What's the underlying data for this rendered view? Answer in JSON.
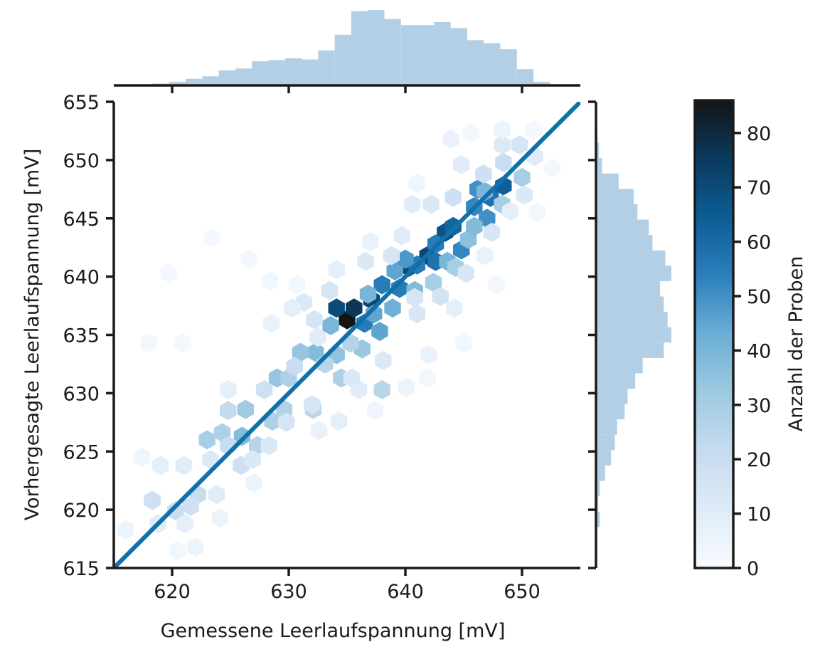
{
  "chart_data": {
    "type": "hexbin-jointplot",
    "xlabel": "Gemessene Leerlaufspannung [mV]",
    "ylabel": "Vorhergesagte Leerlaufspannung [mV]",
    "colorbar_label": "Anzahl der Proben",
    "xlim": [
      615,
      655
    ],
    "ylim": [
      615,
      655
    ],
    "x_ticks": [
      "620",
      "630",
      "640",
      "650"
    ],
    "y_ticks": [
      "615",
      "620",
      "625",
      "630",
      "635",
      "640",
      "645",
      "650",
      "655"
    ],
    "colorbar_ticks": [
      "0",
      "10",
      "20",
      "30",
      "40",
      "50",
      "60",
      "70",
      "80"
    ],
    "colorbar_range": [
      0,
      86
    ],
    "colormap": "Blues",
    "reference_line": {
      "from": [
        615,
        615
      ],
      "to": [
        655,
        655
      ],
      "color": "#1170aa"
    },
    "marginal_color": "#b3cfe5",
    "hexbin_data": [
      [
        635.0,
        636.3,
        86
      ],
      [
        635.6,
        637.3,
        76
      ],
      [
        634.1,
        637.3,
        70
      ],
      [
        637.1,
        638.0,
        72
      ],
      [
        640.3,
        640.8,
        70
      ],
      [
        641.9,
        641.8,
        72
      ],
      [
        643.4,
        643.8,
        68
      ],
      [
        644.1,
        644.3,
        62
      ],
      [
        647.3,
        646.8,
        58
      ],
      [
        648.4,
        647.8,
        64
      ],
      [
        636.5,
        636.0,
        55
      ],
      [
        638.0,
        639.3,
        55
      ],
      [
        639.5,
        639.0,
        55
      ],
      [
        641.0,
        641.0,
        55
      ],
      [
        642.6,
        641.3,
        58
      ],
      [
        642.6,
        642.8,
        55
      ],
      [
        644.8,
        642.3,
        52
      ],
      [
        645.9,
        646.0,
        52
      ],
      [
        646.2,
        647.5,
        50
      ],
      [
        647.0,
        645.0,
        50
      ],
      [
        639.1,
        640.5,
        45
      ],
      [
        640.0,
        641.5,
        48
      ],
      [
        637.3,
        636.8,
        45
      ],
      [
        638.9,
        637.3,
        42
      ],
      [
        637.8,
        635.3,
        45
      ],
      [
        636.8,
        638.5,
        40
      ],
      [
        633.6,
        635.8,
        40
      ],
      [
        632.3,
        633.5,
        38
      ],
      [
        631.0,
        633.5,
        34
      ],
      [
        636.3,
        633.8,
        33
      ],
      [
        634.1,
        633.3,
        35
      ],
      [
        640.8,
        638.8,
        38
      ],
      [
        643.6,
        641.3,
        40
      ],
      [
        645.4,
        643.2,
        36
      ],
      [
        645.9,
        644.3,
        38
      ],
      [
        646.8,
        647.3,
        40
      ],
      [
        650.0,
        648.5,
        30
      ],
      [
        629.0,
        631.3,
        34
      ],
      [
        626.3,
        628.6,
        32
      ],
      [
        626.0,
        626.3,
        38
      ],
      [
        628.6,
        627.6,
        28
      ],
      [
        642.4,
        639.5,
        30
      ],
      [
        644.3,
        640.8,
        30
      ],
      [
        648.3,
        646.2,
        30
      ],
      [
        623.0,
        626.0,
        30
      ],
      [
        624.3,
        626.6,
        28
      ],
      [
        629.6,
        628.6,
        27
      ],
      [
        634.5,
        631.3,
        28
      ],
      [
        633.1,
        632.5,
        25
      ],
      [
        630.0,
        631.3,
        28
      ],
      [
        635.3,
        634.3,
        26
      ],
      [
        630.5,
        632.3,
        20
      ],
      [
        627.3,
        625.5,
        26
      ],
      [
        638.0,
        630.3,
        25
      ],
      [
        632.1,
        628.6,
        25
      ],
      [
        622.2,
        621.3,
        20
      ],
      [
        621.6,
        620.3,
        18
      ],
      [
        620.3,
        619.9,
        20
      ],
      [
        618.3,
        620.8,
        18
      ],
      [
        624.8,
        625.5,
        20
      ],
      [
        625.9,
        623.8,
        18
      ],
      [
        623.3,
        624.3,
        12
      ],
      [
        624.8,
        628.5,
        22
      ],
      [
        627.9,
        630.3,
        18
      ],
      [
        632.2,
        636.3,
        15
      ],
      [
        631.3,
        637.8,
        12
      ],
      [
        632.0,
        629.0,
        15
      ],
      [
        633.5,
        638.8,
        14
      ],
      [
        636.6,
        641.3,
        12
      ],
      [
        638.8,
        641.8,
        14
      ],
      [
        640.8,
        638.2,
        15
      ],
      [
        641.0,
        636.8,
        14
      ],
      [
        643.0,
        638.3,
        16
      ],
      [
        645.2,
        640.3,
        14
      ],
      [
        647.4,
        643.8,
        14
      ],
      [
        646.7,
        648.8,
        18
      ],
      [
        649.8,
        651.3,
        15
      ],
      [
        648.4,
        649.8,
        20
      ],
      [
        648.3,
        651.3,
        12
      ],
      [
        644.8,
        649.6,
        10
      ],
      [
        642.2,
        646.2,
        12
      ],
      [
        640.6,
        646.2,
        10
      ],
      [
        639.7,
        643.5,
        10
      ],
      [
        644.1,
        646.8,
        18
      ],
      [
        650.2,
        647.0,
        12
      ],
      [
        651.1,
        650.3,
        10
      ],
      [
        636.0,
        630.3,
        10
      ],
      [
        638.1,
        632.8,
        12
      ],
      [
        635.4,
        631.3,
        12
      ],
      [
        629.8,
        627.5,
        15
      ],
      [
        628.3,
        625.5,
        12
      ],
      [
        626.9,
        624.3,
        12
      ],
      [
        621.0,
        623.8,
        10
      ],
      [
        619.0,
        623.8,
        8
      ],
      [
        618.8,
        618.8,
        10
      ],
      [
        621.1,
        618.8,
        8
      ],
      [
        623.8,
        621.3,
        10
      ],
      [
        622.0,
        616.8,
        5
      ],
      [
        630.3,
        637.3,
        8
      ],
      [
        632.5,
        634.8,
        10
      ],
      [
        628.5,
        636.0,
        6
      ],
      [
        624.8,
        630.3,
        8
      ],
      [
        634.1,
        640.6,
        8
      ],
      [
        637.0,
        643.0,
        6
      ],
      [
        641.0,
        648.0,
        4
      ],
      [
        643.9,
        651.8,
        6
      ],
      [
        648.3,
        652.6,
        5
      ],
      [
        642.0,
        633.3,
        6
      ],
      [
        644.2,
        637.3,
        8
      ],
      [
        646.8,
        641.8,
        6
      ],
      [
        649.0,
        645.6,
        8
      ],
      [
        640.1,
        630.5,
        5
      ],
      [
        637.4,
        628.5,
        4
      ],
      [
        634.3,
        627.6,
        8
      ],
      [
        632.6,
        626.8,
        6
      ],
      [
        627.0,
        622.3,
        5
      ],
      [
        624.1,
        619.3,
        5
      ],
      [
        620.5,
        616.5,
        3
      ],
      [
        617.4,
        624.5,
        4
      ],
      [
        616.0,
        618.3,
        5
      ],
      [
        618.0,
        634.3,
        3
      ],
      [
        620.9,
        634.3,
        2
      ],
      [
        623.4,
        643.3,
        2
      ],
      [
        619.7,
        640.3,
        2
      ],
      [
        626.6,
        641.5,
        2
      ],
      [
        628.4,
        639.6,
        3
      ],
      [
        630.7,
        639.3,
        3
      ],
      [
        641.9,
        631.3,
        3
      ],
      [
        645.0,
        634.3,
        3
      ],
      [
        647.8,
        639.3,
        3
      ],
      [
        651.3,
        645.5,
        3
      ],
      [
        652.6,
        649.3,
        2
      ],
      [
        651.0,
        652.6,
        2
      ],
      [
        645.6,
        652.3,
        2
      ]
    ],
    "x_histogram": {
      "range": [
        616.9,
        652.4
      ],
      "counts": [
        1,
        3,
        6,
        11,
        15,
        25,
        28,
        40,
        42,
        45,
        43,
        58,
        84,
        123,
        125,
        110,
        100,
        100,
        105,
        95,
        75,
        70,
        60,
        27,
        6
      ]
    },
    "y_histogram": {
      "range": [
        617.2,
        652.8
      ],
      "counts_bottom_to_top": [
        1,
        5,
        3,
        5,
        12,
        20,
        25,
        28,
        38,
        42,
        52,
        62,
        90,
        100,
        95,
        90,
        85,
        100,
        92,
        75,
        70,
        55,
        50,
        30,
        8,
        4,
        2
      ]
    }
  }
}
